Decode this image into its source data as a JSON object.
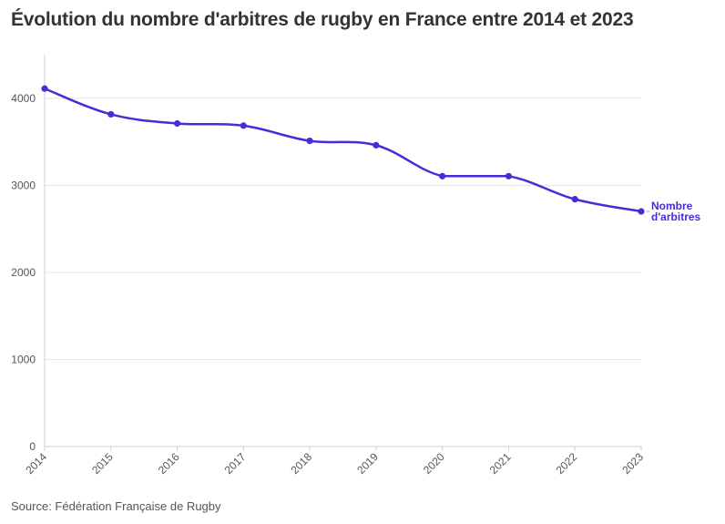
{
  "title": "Évolution du nombre d'arbitres de rugby en France entre 2014 et 2023",
  "source": "Source: Fédération Française de Rugby",
  "colors": {
    "series": "#4b2ad8",
    "grid": "#e6e6e6",
    "axis": "#d0d0d0"
  },
  "chart_data": {
    "type": "line",
    "title": "Évolution du nombre d'arbitres de rugby en France entre 2014 et 2023",
    "xlabel": "",
    "ylabel": "",
    "x": [
      "2014",
      "2015",
      "2016",
      "2017",
      "2018",
      "2019",
      "2020",
      "2021",
      "2022",
      "2023"
    ],
    "series": [
      {
        "name": "Nombre d'arbitres",
        "label_lines": [
          "Nombre",
          "d'arbitres"
        ],
        "values": [
          4110,
          3815,
          3710,
          3685,
          3510,
          3460,
          3105,
          3105,
          2840,
          2700
        ]
      }
    ],
    "ylim": [
      0,
      4500
    ],
    "yticks": [
      0,
      1000,
      2000,
      3000,
      4000
    ],
    "grid": true,
    "legend": "direct label at end of line"
  }
}
